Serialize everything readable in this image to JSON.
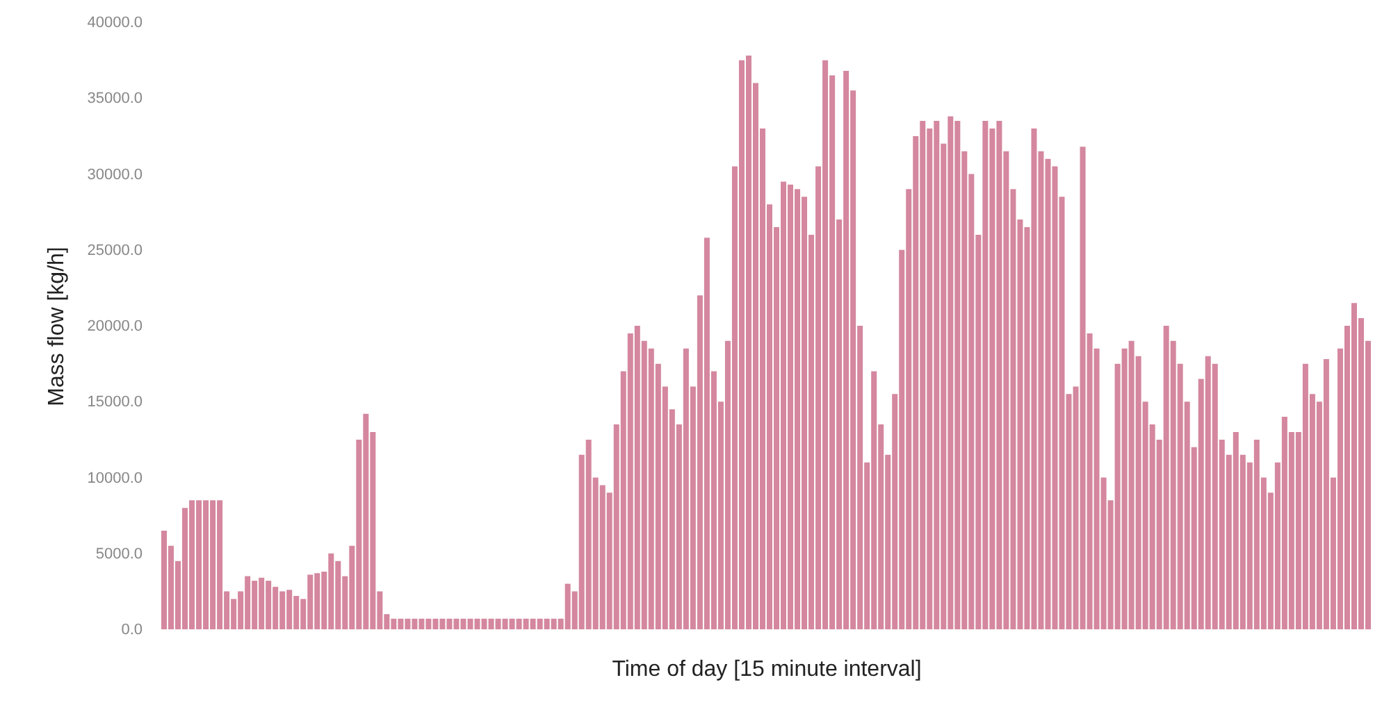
{
  "chart_data": {
    "type": "bar",
    "xlabel": "Time of day [15 minute interval]",
    "ylabel": "Mass flow [kg/h]",
    "categories": [
      null,
      null,
      null,
      null,
      null,
      null,
      null,
      null,
      null,
      null,
      null,
      null,
      null,
      null,
      null,
      null,
      null,
      null,
      null,
      null,
      null,
      null,
      null,
      null,
      null,
      null,
      null,
      null,
      null,
      null,
      null,
      null,
      null,
      null,
      null,
      null,
      null,
      null,
      null,
      null,
      null,
      null,
      null,
      null,
      null,
      null,
      null,
      null,
      null,
      null,
      null,
      null,
      null,
      null,
      null,
      null,
      null,
      null,
      null,
      null,
      null,
      null,
      null,
      null,
      null,
      null,
      null,
      null,
      null,
      null,
      null,
      null,
      null,
      null,
      null,
      null,
      null,
      null,
      null,
      null,
      null,
      null,
      null,
      null,
      null,
      null,
      null,
      null,
      null,
      null,
      null,
      null,
      null,
      null,
      null,
      null,
      null,
      null,
      null,
      null,
      null,
      null,
      null,
      null,
      null,
      null,
      null,
      null,
      null,
      null,
      null,
      null,
      null,
      null,
      null,
      null,
      null,
      null,
      null,
      null,
      null,
      null,
      null,
      null,
      null,
      null,
      null,
      null,
      null,
      null,
      null,
      null,
      null,
      null,
      null,
      null,
      null,
      null,
      null,
      null,
      null,
      null,
      null,
      null,
      null,
      null,
      null,
      null,
      null,
      null,
      null,
      null,
      null,
      null,
      null,
      null,
      null,
      null,
      null,
      null,
      null,
      null,
      null,
      null,
      null,
      null,
      null,
      null,
      null,
      null,
      null,
      null,
      null,
      null
    ],
    "values": [
      6500,
      5500,
      4500,
      8000,
      8500,
      8500,
      8500,
      8500,
      8500,
      2500,
      2000,
      2500,
      3500,
      3200,
      3400,
      3200,
      2800,
      2500,
      2600,
      2200,
      2000,
      3600,
      3700,
      3800,
      5000,
      4500,
      3500,
      5500,
      12500,
      14200,
      13000,
      2500,
      1000,
      700,
      700,
      700,
      700,
      700,
      700,
      700,
      700,
      700,
      700,
      700,
      700,
      700,
      700,
      700,
      700,
      700,
      700,
      700,
      700,
      700,
      700,
      700,
      700,
      700,
      3000,
      2500,
      11500,
      12500,
      10000,
      9500,
      9000,
      13500,
      17000,
      19500,
      20000,
      19000,
      18500,
      17500,
      16000,
      14500,
      13500,
      18500,
      16000,
      22000,
      25800,
      17000,
      15000,
      19000,
      30500,
      37500,
      37800,
      36000,
      33000,
      28000,
      26500,
      29500,
      29300,
      29000,
      28500,
      26000,
      30500,
      37500,
      36500,
      27000,
      36800,
      35500,
      20000,
      11000,
      17000,
      13500,
      11500,
      15500,
      25000,
      29000,
      32500,
      33500,
      33000,
      33500,
      32000,
      33800,
      33500,
      31500,
      30000,
      26000,
      33500,
      33000,
      33500,
      31500,
      29000,
      27000,
      26500,
      33000,
      31500,
      31000,
      30500,
      28500,
      15500,
      16000,
      31800,
      19500,
      18500,
      10000,
      8500,
      17500,
      18500,
      19000,
      18000,
      15000,
      13500,
      12500,
      20000,
      19000,
      17500,
      15000,
      12000,
      16500,
      18000,
      17500,
      12500,
      11500,
      13000,
      11500,
      11000,
      12500,
      10000,
      9000,
      11000,
      14000,
      13000,
      13000,
      17500,
      15500,
      15000,
      17800,
      10000,
      18500,
      20000,
      21500,
      20500,
      19000
    ],
    "color": "#d4879f",
    "ylim": [
      0,
      40000
    ],
    "yticks": [
      {
        "value": 0,
        "label": "0.0"
      },
      {
        "value": 5000,
        "label": "5000.0"
      },
      {
        "value": 10000,
        "label": "10000.0"
      },
      {
        "value": 15000,
        "label": "15000.0"
      },
      {
        "value": 20000,
        "label": "20000.0"
      },
      {
        "value": 25000,
        "label": "25000.0"
      },
      {
        "value": 30000,
        "label": "30000.0"
      },
      {
        "value": 35000,
        "label": "35000.0"
      },
      {
        "value": 40000,
        "label": "40000.0"
      }
    ],
    "tick_labels": "y",
    "grid": false
  }
}
